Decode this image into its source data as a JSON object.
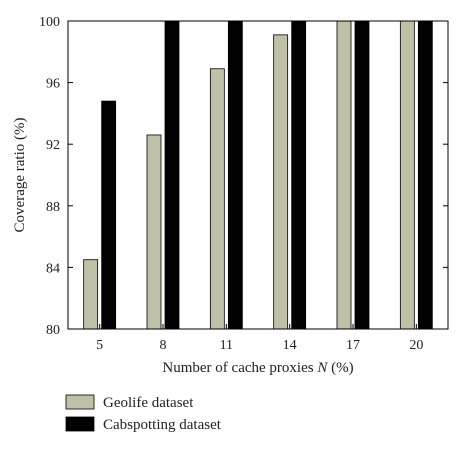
{
  "chart_data": {
    "type": "bar",
    "categories": [
      "5",
      "8",
      "11",
      "14",
      "17",
      "20"
    ],
    "series": [
      {
        "name": "Geolife dataset",
        "values": [
          84.5,
          92.6,
          96.9,
          99.1,
          100,
          100
        ],
        "color": "#c0c0a8"
      },
      {
        "name": "Cabspotting dataset",
        "values": [
          94.8,
          100,
          100,
          100,
          100,
          100
        ],
        "color": "#000000"
      }
    ],
    "xlabel_parts": {
      "before": "Number of cache proxies ",
      "italic": "N",
      "after": " (%)"
    },
    "ylabel": "Coverage ratio (%)",
    "ylim": [
      80,
      100
    ],
    "yticks": [
      80,
      84,
      88,
      92,
      96,
      100
    ],
    "legend_position": "bottom-left",
    "grid": false
  }
}
